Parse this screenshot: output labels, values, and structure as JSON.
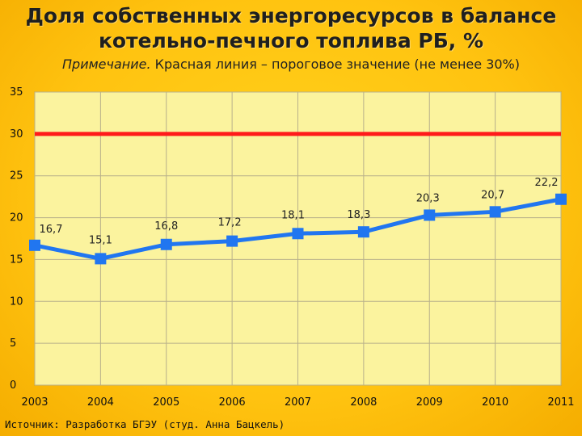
{
  "title_line1": "Доля собственных энергоресурсов  в балансе",
  "title_line2": "котельно-печного топлива РБ, %",
  "note_lead": "Примечание.",
  "note_text": " Красная линия – пороговое значение (не менее 30%)",
  "source": "Источник: Разработка БГЭУ (студ. Анна Бацкель)",
  "colors": {
    "background": "#ffc310",
    "plot_background": "#fbf39e",
    "series": "#2176f0",
    "threshold": "#ff1a1a",
    "grid": "#b8b08a"
  },
  "chart_data": {
    "type": "line",
    "categories": [
      "2003",
      "2004",
      "2005",
      "2006",
      "2007",
      "2008",
      "2009",
      "2010",
      "2011"
    ],
    "series": [
      {
        "values": [
          16.7,
          15.1,
          16.8,
          17.2,
          18.1,
          18.3,
          20.3,
          20.7,
          22.2
        ]
      },
      {
        "values": [
          30,
          30,
          30,
          30,
          30,
          30,
          30,
          30,
          30
        ]
      }
    ],
    "data_labels": [
      "16,7",
      "15,1",
      "16,8",
      "17,2",
      "18,1",
      "18,3",
      "20,3",
      "20,7",
      "22,2"
    ],
    "ylim": [
      0,
      35
    ],
    "yticks": [
      0,
      5,
      10,
      15,
      20,
      25,
      30,
      35
    ],
    "grid": true
  }
}
